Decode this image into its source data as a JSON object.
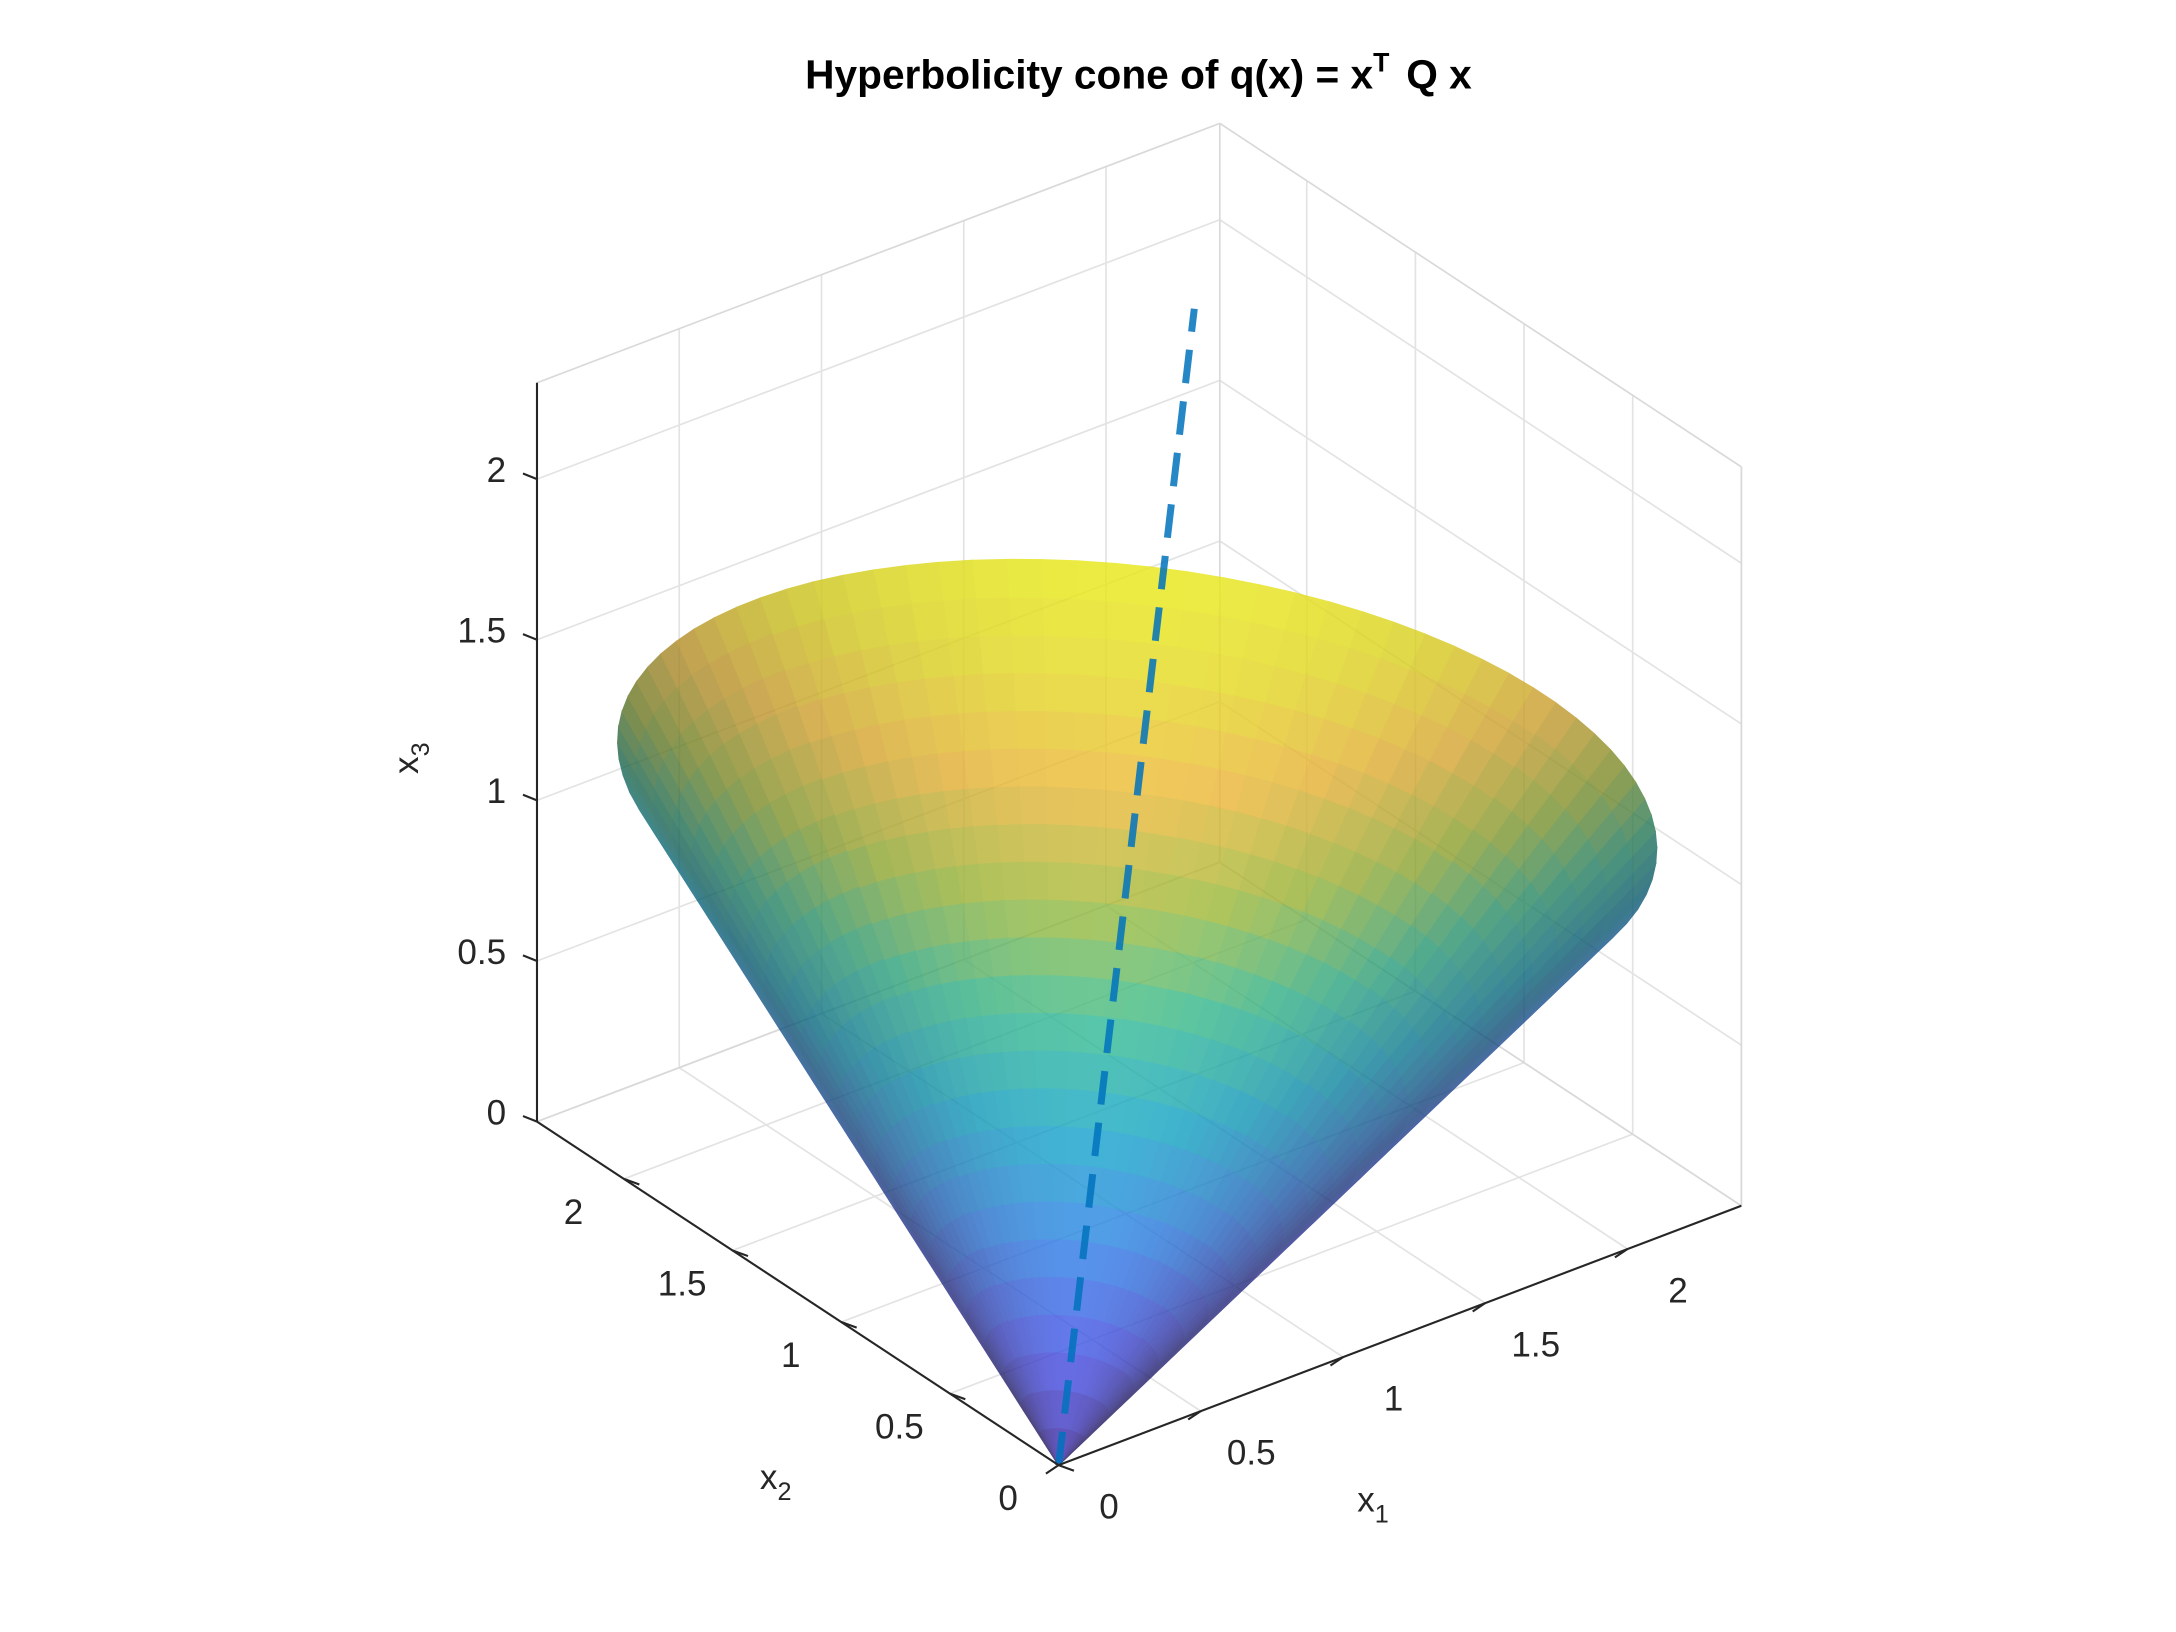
{
  "chart_data": {
    "type": "surface3d",
    "title": {
      "text": "Hyperbolicity cone of q(x) = x",
      "sup": "T",
      "tail": "Q x"
    },
    "xlabel": {
      "text": "x",
      "sub": "1"
    },
    "ylabel": {
      "text": "x",
      "sub": "2"
    },
    "zlabel": {
      "text": "x",
      "sub": "3"
    },
    "xlim": [
      0,
      2.4
    ],
    "ylim": [
      0,
      2.4
    ],
    "zlim": [
      0,
      2.3
    ],
    "xticks": [
      0,
      0.5,
      1,
      1.5,
      2
    ],
    "yticks": [
      0,
      0.5,
      1,
      1.5,
      2
    ],
    "zticks": [
      0,
      0.5,
      1,
      1.5,
      2
    ],
    "grid": true,
    "surface": {
      "apex": [
        0,
        0,
        0
      ],
      "axis_end": [
        1.17,
        1.17,
        1.17
      ],
      "rim_radius": 1.46,
      "colormap": "parula",
      "alpha": 0.8
    },
    "line": {
      "x": [
        0,
        2.02
      ],
      "y": [
        0,
        2.02
      ],
      "z": [
        0,
        2.02
      ],
      "color": "#0072bd",
      "dash": true
    }
  }
}
